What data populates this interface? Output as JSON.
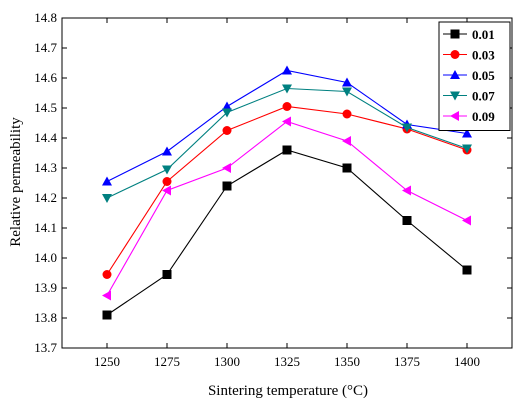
{
  "chart_data": {
    "type": "line",
    "title": "",
    "xlabel": "Sintering temperature (°C)",
    "ylabel": "Relative permeability",
    "categories": [
      "1250",
      "1275",
      "1300",
      "1325",
      "1350",
      "1375",
      "1400"
    ],
    "ylim": [
      13.7,
      14.8
    ],
    "yticks": [
      "13.7",
      "13.8",
      "13.9",
      "14.0",
      "14.1",
      "14.2",
      "14.3",
      "14.4",
      "14.5",
      "14.6",
      "14.7",
      "14.8"
    ],
    "grid": false,
    "legend_position": "top-right",
    "series": [
      {
        "name": "0.01",
        "color": "#000000",
        "marker": "square",
        "values": [
          13.81,
          13.945,
          14.24,
          14.36,
          14.3,
          14.125,
          13.96
        ]
      },
      {
        "name": "0.03",
        "color": "#ff0000",
        "marker": "circle",
        "values": [
          13.945,
          14.255,
          14.425,
          14.505,
          14.48,
          14.43,
          14.36
        ]
      },
      {
        "name": "0.05",
        "color": "#0000ff",
        "marker": "triangle-up",
        "values": [
          14.255,
          14.355,
          14.505,
          14.625,
          14.585,
          14.445,
          14.415
        ]
      },
      {
        "name": "0.07",
        "color": "#008080",
        "marker": "triangle-down",
        "values": [
          14.2,
          14.295,
          14.485,
          14.565,
          14.555,
          14.435,
          14.365
        ]
      },
      {
        "name": "0.09",
        "color": "#ff00ff",
        "marker": "triangle-left",
        "values": [
          13.875,
          14.225,
          14.3,
          14.455,
          14.39,
          14.225,
          14.125
        ]
      }
    ]
  }
}
